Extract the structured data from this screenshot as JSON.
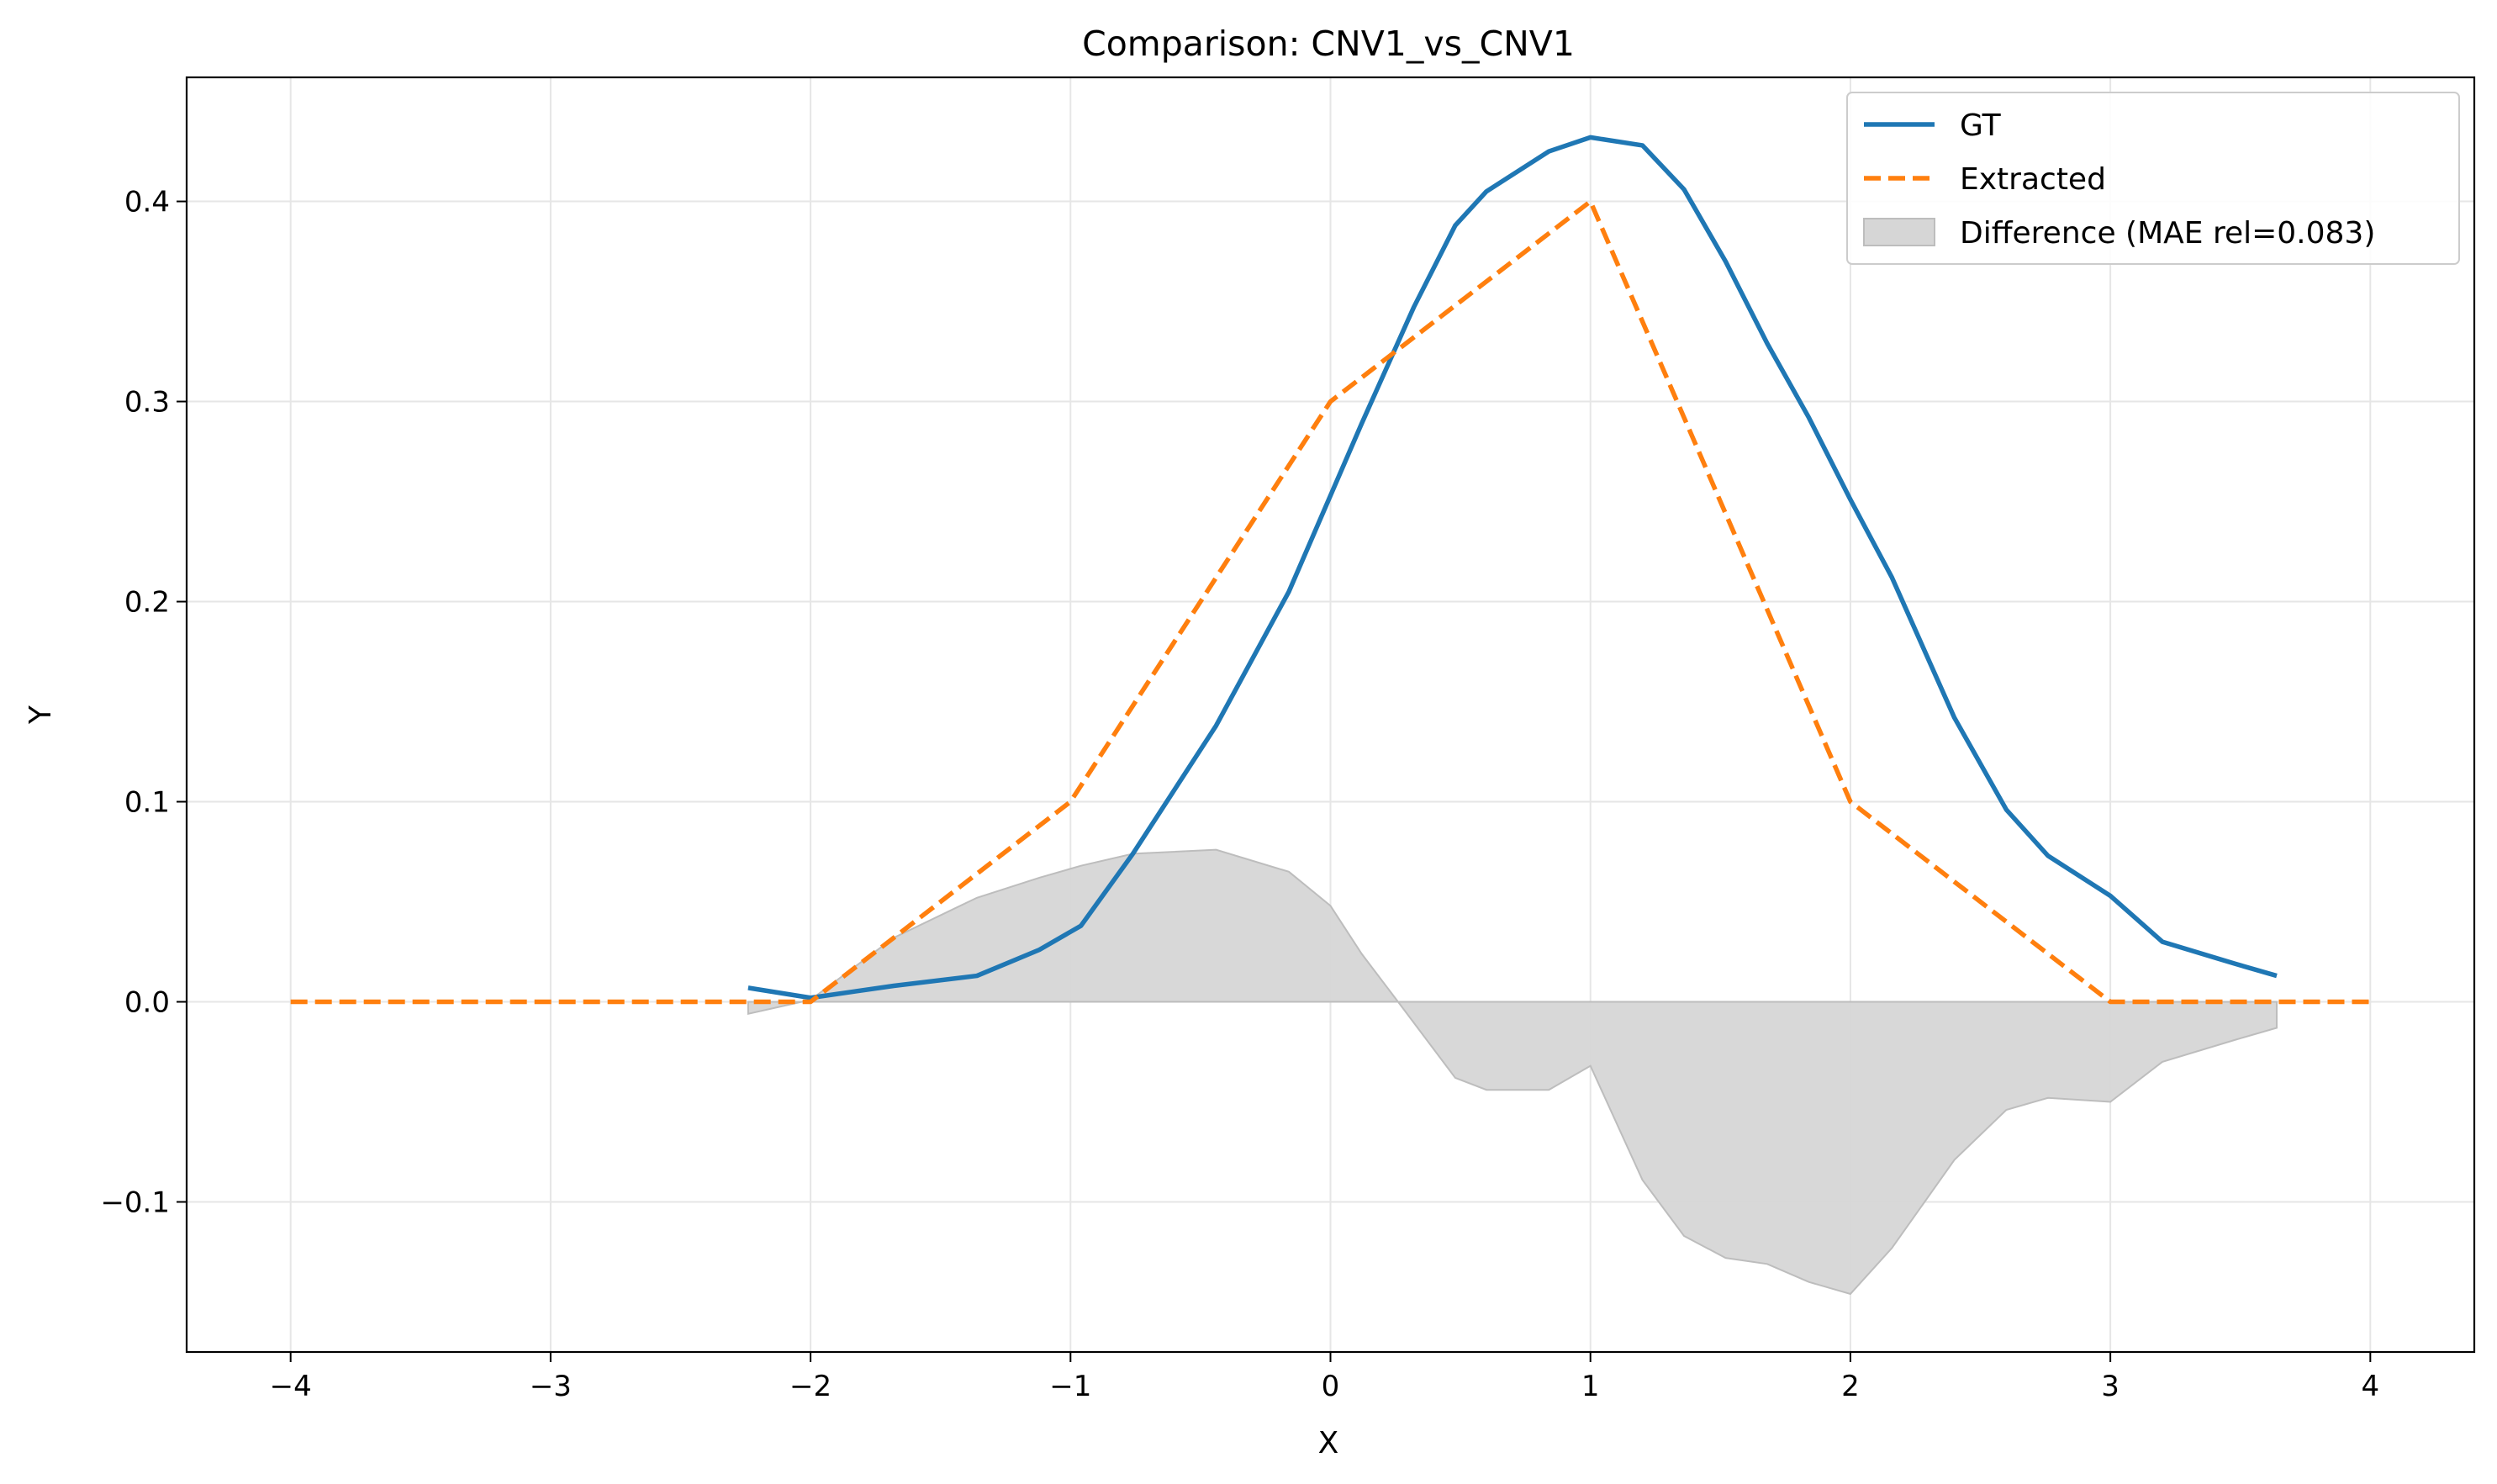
{
  "chart_data": {
    "type": "line",
    "title": "Comparison: CNV1_vs_CNV1",
    "xlabel": "X",
    "ylabel": "Y",
    "xlim": [
      -4.4,
      4.4
    ],
    "ylim": [
      -0.175,
      0.462
    ],
    "grid": true,
    "legend_position": "top-right",
    "x_ticks": [
      -4,
      -3,
      -2,
      -1,
      0,
      1,
      2,
      3,
      4
    ],
    "x_tick_labels": [
      "−4",
      "−3",
      "−2",
      "−1",
      "0",
      "1",
      "2",
      "3",
      "4"
    ],
    "y_ticks": [
      -0.1,
      0.0,
      0.1,
      0.2,
      0.3,
      0.4
    ],
    "y_tick_labels": [
      "−0.1",
      "0.0",
      "0.1",
      "0.2",
      "0.3",
      "0.4"
    ],
    "series": [
      {
        "name": "GT",
        "color": "#1f77b4",
        "style": "solid",
        "x": [
          -2.24,
          -2.0,
          -1.68,
          -1.36,
          -1.12,
          -0.96,
          -0.76,
          -0.44,
          -0.16,
          0.12,
          0.32,
          0.48,
          0.6,
          0.84,
          1.0,
          1.2,
          1.36,
          1.52,
          1.68,
          1.84,
          2.0,
          2.16,
          2.4,
          2.6,
          2.76,
          3.0,
          3.2,
          3.48,
          3.64
        ],
        "y": [
          0.007,
          0.002,
          0.008,
          0.013,
          0.026,
          0.038,
          0.074,
          0.138,
          0.205,
          0.289,
          0.347,
          0.388,
          0.405,
          0.425,
          0.432,
          0.428,
          0.406,
          0.37,
          0.329,
          0.292,
          0.251,
          0.212,
          0.142,
          0.096,
          0.073,
          0.053,
          0.03,
          0.019,
          0.013
        ]
      },
      {
        "name": "Extracted",
        "color": "#ff7f0e",
        "style": "dashed",
        "x": [
          -4.0,
          -2.0,
          -1.0,
          0.0,
          1.0,
          2.0,
          3.0,
          4.0
        ],
        "y": [
          0.0,
          0.0,
          0.1,
          0.3,
          0.4,
          0.1,
          0.0,
          0.0
        ]
      },
      {
        "name": "Difference (MAE rel=0.083)",
        "color": "#d6d6d6",
        "style": "area",
        "x": [
          -2.24,
          -2.0,
          -1.68,
          -1.36,
          -1.12,
          -0.96,
          -0.76,
          -0.44,
          -0.16,
          0.0,
          0.12,
          0.26,
          0.48,
          0.6,
          0.84,
          1.0,
          1.2,
          1.36,
          1.52,
          1.68,
          1.84,
          2.0,
          2.16,
          2.4,
          2.6,
          2.76,
          3.0,
          3.2,
          3.48,
          3.64
        ],
        "y": [
          -0.006,
          0.001,
          0.032,
          0.052,
          0.062,
          0.068,
          0.074,
          0.076,
          0.065,
          0.048,
          0.024,
          0.0,
          -0.038,
          -0.044,
          -0.044,
          -0.032,
          -0.089,
          -0.117,
          -0.128,
          -0.131,
          -0.14,
          -0.146,
          -0.123,
          -0.079,
          -0.054,
          -0.048,
          -0.05,
          -0.03,
          -0.019,
          -0.013
        ]
      }
    ]
  }
}
